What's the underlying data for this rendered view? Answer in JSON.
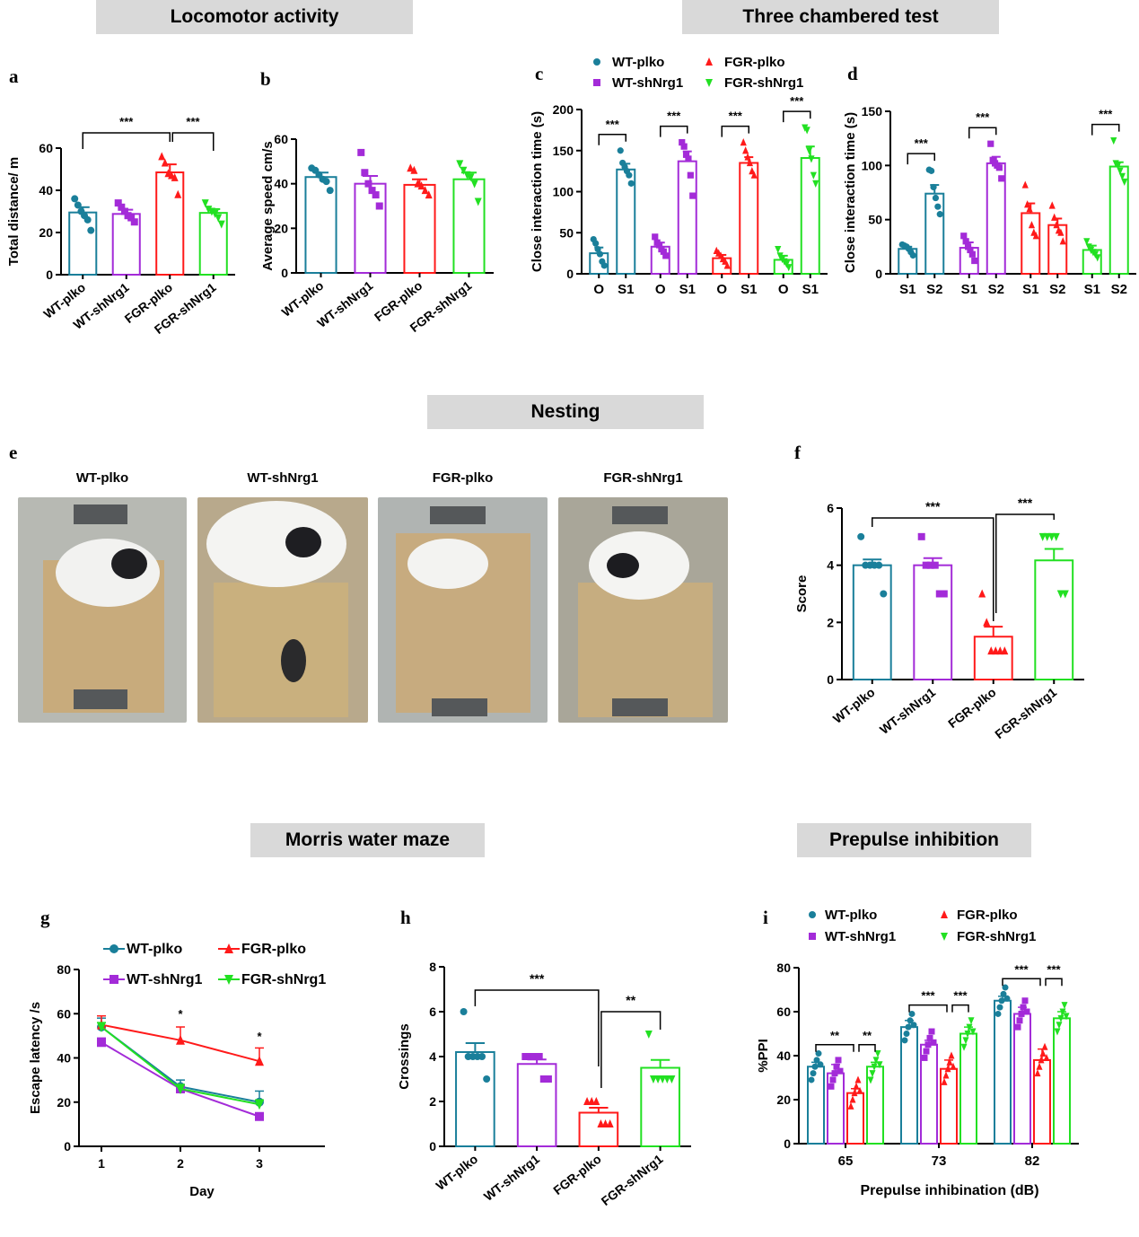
{
  "sections": {
    "locomotor": "Locomotor activity",
    "three_chamber": "Three chambered test",
    "nesting": "Nesting",
    "morris": "Morris water maze",
    "ppi": "Prepulse inhibition"
  },
  "panel_letters": {
    "a": "a",
    "b": "b",
    "c": "c",
    "d": "d",
    "e": "e",
    "f": "f",
    "g": "g",
    "h": "h",
    "i": "i"
  },
  "colors": {
    "wt_plko": "#1a7f9a",
    "wt_shnrg1": "#a32bd8",
    "fgr_plko": "#ff1a1a",
    "fgr_shnrg1": "#22e022"
  },
  "photos": {
    "titles": [
      "WT-plko",
      "WT-shNrg1",
      "FGR-plko",
      "FGR-shNrg1"
    ]
  },
  "chart_data": [
    {
      "id": "a",
      "type": "bar",
      "ylabel": "Total distance/ m",
      "ylim": [
        0,
        60
      ],
      "yticks": [
        0,
        20,
        40,
        60
      ],
      "categories": [
        "WT-plko",
        "WT-shNrg1",
        "FGR-plko",
        "FGR-shNrg1"
      ],
      "values": [
        29.5,
        28.8,
        48.5,
        29.3
      ],
      "errors": [
        2.5,
        2.0,
        3.8,
        1.8
      ],
      "points": [
        [
          36,
          33,
          30,
          28,
          26,
          21
        ],
        [
          34,
          32,
          30,
          28,
          27,
          25
        ],
        [
          56,
          53,
          48,
          47,
          46,
          38
        ],
        [
          34,
          31,
          30,
          29,
          27,
          24
        ]
      ],
      "annotations": [
        {
          "text": "***",
          "from": 0,
          "to": 2
        },
        {
          "text": "***",
          "from": 2,
          "to": 3
        }
      ]
    },
    {
      "id": "b",
      "type": "bar",
      "ylabel": "Average speed cm/s",
      "ylim": [
        0,
        60
      ],
      "yticks": [
        0,
        20,
        40,
        60
      ],
      "categories": [
        "WT-plko",
        "WT-shNrg1",
        "FGR-plko",
        "FGR-shNrg1"
      ],
      "values": [
        43,
        40,
        39.5,
        42
      ],
      "errors": [
        2,
        3.5,
        2.5,
        3
      ],
      "points": [
        [
          47,
          46,
          44,
          42,
          41,
          37
        ],
        [
          54,
          45,
          40,
          37,
          35,
          30
        ],
        [
          47,
          46,
          40,
          39,
          37,
          35
        ],
        [
          49,
          46,
          44,
          43,
          40,
          32
        ]
      ],
      "annotations": []
    },
    {
      "id": "c",
      "type": "paired_bar",
      "ylabel": "Close interaction time (s)",
      "ylim": [
        0,
        200
      ],
      "yticks": [
        0,
        50,
        100,
        150,
        200
      ],
      "groups": [
        "WT-plko",
        "WT-shNrg1",
        "FGR-plko",
        "FGR-shNrg1"
      ],
      "pair_labels": [
        "O",
        "S1"
      ],
      "values": [
        [
          25,
          127
        ],
        [
          33,
          137
        ],
        [
          19,
          135
        ],
        [
          17,
          141
        ]
      ],
      "errors": [
        [
          7,
          7
        ],
        [
          5,
          12
        ],
        [
          4,
          7
        ],
        [
          5,
          14
        ]
      ],
      "points": [
        [
          [
            42,
            37,
            30,
            24,
            15,
            10
          ],
          [
            150,
            135,
            130,
            125,
            120,
            110
          ]
        ],
        [
          [
            45,
            38,
            35,
            30,
            27,
            22
          ],
          [
            160,
            155,
            145,
            140,
            120,
            95
          ]
        ],
        [
          [
            28,
            25,
            22,
            18,
            15,
            10
          ],
          [
            160,
            150,
            142,
            135,
            125,
            120
          ]
        ],
        [
          [
            30,
            22,
            18,
            15,
            12,
            8
          ],
          [
            178,
            175,
            150,
            140,
            120,
            110
          ]
        ]
      ],
      "annotations": [
        "***",
        "***",
        "***",
        "***"
      ],
      "legend": [
        "WT-plko",
        "FGR-plko",
        "WT-shNrg1",
        "FGR-shNrg1"
      ]
    },
    {
      "id": "d",
      "type": "paired_bar",
      "ylabel": "Close interaction time (s)",
      "ylim": [
        0,
        150
      ],
      "yticks": [
        0,
        50,
        100,
        150
      ],
      "groups": [
        "WT-plko",
        "WT-shNrg1",
        "FGR-plko",
        "FGR-shNrg1"
      ],
      "pair_labels": [
        "S1",
        "S2"
      ],
      "values": [
        [
          23,
          74
        ],
        [
          24,
          102
        ],
        [
          56,
          45
        ],
        [
          22,
          99
        ]
      ],
      "errors": [
        [
          2,
          8
        ],
        [
          5,
          6
        ],
        [
          9,
          6
        ],
        [
          4,
          4
        ]
      ],
      "points": [
        [
          [
            27,
            26,
            25,
            23,
            20,
            17
          ],
          [
            96,
            95,
            80,
            70,
            62,
            55
          ]
        ],
        [
          [
            35,
            30,
            25,
            22,
            18,
            12
          ],
          [
            120,
            105,
            102,
            100,
            98,
            88
          ]
        ],
        [
          [
            82,
            64,
            60,
            45,
            38,
            35
          ],
          [
            63,
            52,
            45,
            40,
            38,
            30
          ]
        ],
        [
          [
            30,
            25,
            22,
            20,
            18,
            15
          ],
          [
            123,
            102,
            100,
            95,
            90,
            85
          ]
        ]
      ],
      "annotations": [
        "***",
        "***",
        null,
        "***"
      ]
    },
    {
      "id": "f",
      "type": "bar",
      "ylabel": "Score",
      "ylim": [
        0,
        6
      ],
      "yticks": [
        0,
        2,
        4,
        6
      ],
      "categories": [
        "WT-plko",
        "WT-shNrg1",
        "FGR-plko",
        "FGR-shNrg1"
      ],
      "values": [
        4.0,
        4.0,
        1.5,
        4.17
      ],
      "errors": [
        0.2,
        0.25,
        0.35,
        0.4
      ],
      "points": [
        [
          5,
          4,
          4,
          4,
          4,
          3
        ],
        [
          5,
          4,
          4,
          4,
          3,
          3
        ],
        [
          3,
          2,
          1,
          1,
          1,
          1
        ],
        [
          5,
          5,
          5,
          5,
          3,
          3
        ]
      ],
      "annotations": [
        {
          "text": "***",
          "from": 0,
          "to": 2
        },
        {
          "text": "***",
          "from": 2,
          "to": 3
        }
      ]
    },
    {
      "id": "g",
      "type": "line",
      "xlabel": "Day",
      "ylabel": "Escape latency /s",
      "ylim": [
        0,
        80
      ],
      "yticks": [
        0,
        20,
        40,
        60,
        80
      ],
      "x": [
        1,
        2,
        3
      ],
      "series": [
        {
          "name": "WT-plko",
          "values": [
            54,
            27,
            20
          ],
          "errors": [
            4,
            3,
            5
          ]
        },
        {
          "name": "FGR-plko",
          "values": [
            55,
            48,
            38.5
          ],
          "errors": [
            4,
            6,
            6
          ]
        },
        {
          "name": "WT-shNrg1",
          "values": [
            47,
            26,
            13.5
          ],
          "errors": [
            2,
            2,
            1.5
          ]
        },
        {
          "name": "FGR-shNrg1",
          "values": [
            54,
            26,
            19
          ],
          "errors": [
            2,
            2,
            2
          ]
        }
      ],
      "annotations": [
        {
          "x": 2,
          "text": "*"
        },
        {
          "x": 3,
          "text": "*"
        }
      ]
    },
    {
      "id": "h",
      "type": "bar",
      "ylabel": "Crossings",
      "ylim": [
        0,
        8
      ],
      "yticks": [
        0,
        2,
        4,
        6,
        8
      ],
      "categories": [
        "WT-plko",
        "WT-shNrg1",
        "FGR-plko",
        "FGR-shNrg1"
      ],
      "values": [
        4.2,
        3.67,
        1.5,
        3.5
      ],
      "errors": [
        0.4,
        0.2,
        0.22,
        0.35
      ],
      "points": [
        [
          6,
          4,
          4,
          4,
          4,
          3
        ],
        [
          4,
          4,
          4,
          4,
          3,
          3
        ],
        [
          2,
          2,
          2,
          1,
          1,
          1
        ],
        [
          5,
          3,
          3,
          3,
          3,
          3
        ]
      ],
      "annotations": [
        {
          "text": "***",
          "from": 0,
          "to": 2
        },
        {
          "text": "**",
          "from": 2,
          "to": 3
        }
      ]
    },
    {
      "id": "i",
      "type": "grouped_bar",
      "xlabel": "Prepulse inhibination (dB)",
      "ylabel": "%PPI",
      "ylim": [
        0,
        80
      ],
      "yticks": [
        0,
        20,
        40,
        60,
        80
      ],
      "categories": [
        "65",
        "73",
        "82"
      ],
      "series": [
        {
          "name": "WT-plko",
          "values": [
            35,
            53,
            65
          ],
          "errors": [
            2,
            3,
            2
          ]
        },
        {
          "name": "WT-shNrg1",
          "values": [
            32,
            45,
            59
          ],
          "errors": [
            4,
            2,
            3
          ]
        },
        {
          "name": "FGR-plko",
          "values": [
            23,
            34,
            38
          ],
          "errors": [
            2,
            4,
            5
          ]
        },
        {
          "name": "FGR-shNrg1",
          "values": [
            35,
            50,
            57
          ],
          "errors": [
            2,
            3,
            3
          ]
        }
      ],
      "annotations": [
        {
          "cat": 0,
          "text": "**",
          "from": 0,
          "to": 2
        },
        {
          "cat": 0,
          "text": "**",
          "from": 2,
          "to": 3
        },
        {
          "cat": 1,
          "text": "***",
          "from": 0,
          "to": 2
        },
        {
          "cat": 1,
          "text": "***",
          "from": 2,
          "to": 3
        },
        {
          "cat": 2,
          "text": "***",
          "from": 0,
          "to": 2
        },
        {
          "cat": 2,
          "text": "***",
          "from": 2,
          "to": 3
        }
      ]
    }
  ]
}
